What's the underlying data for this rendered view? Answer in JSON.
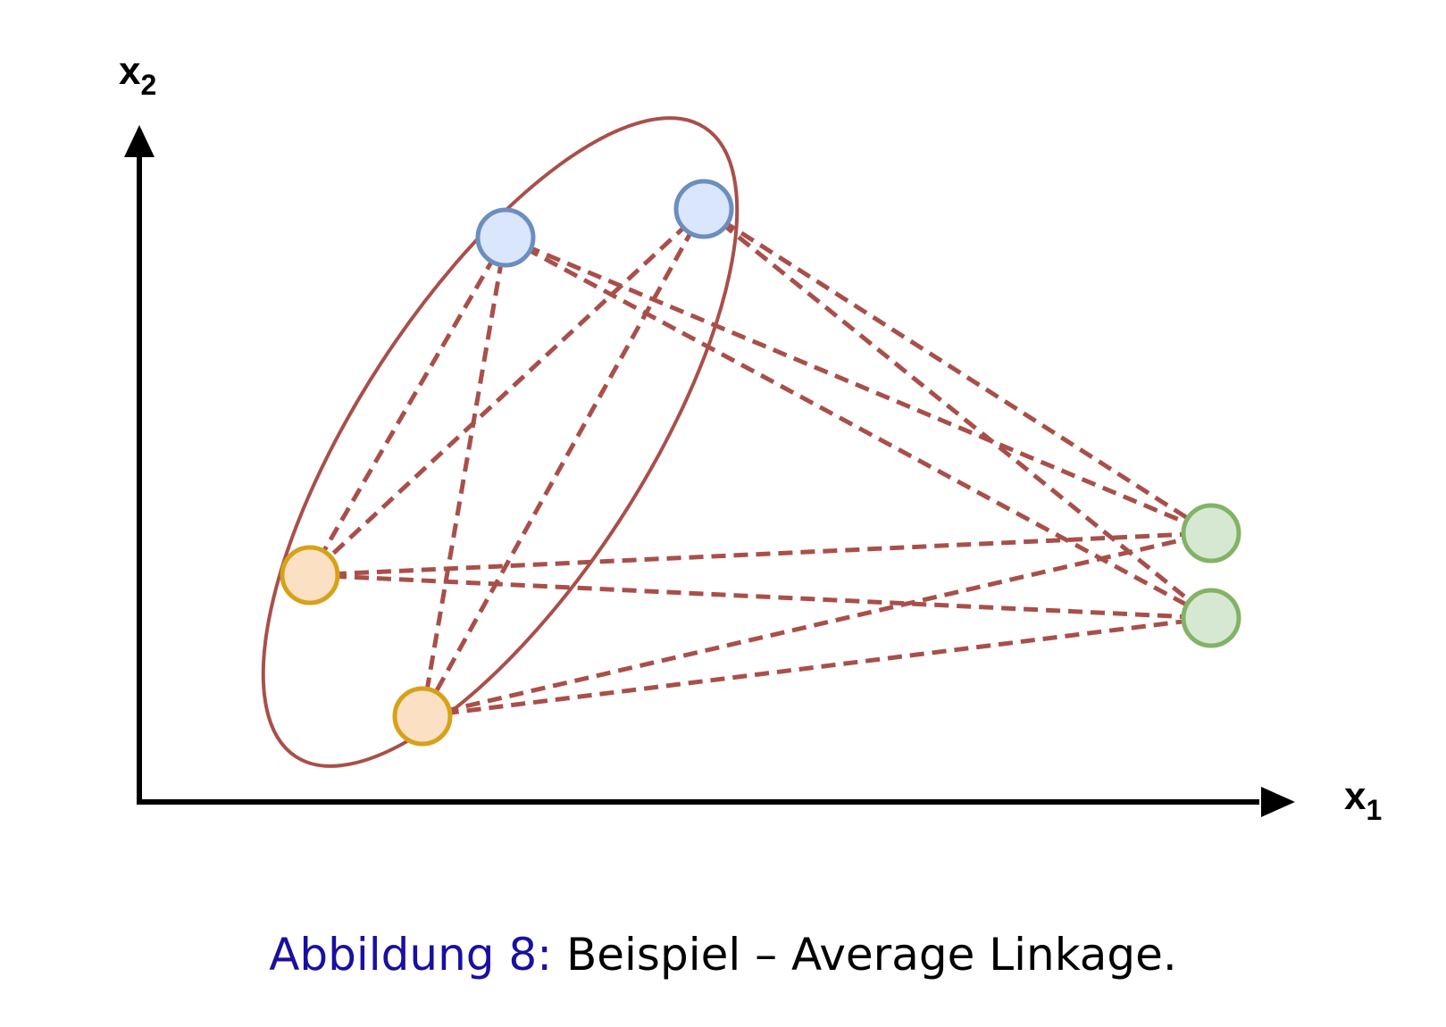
{
  "diagram": {
    "axes": {
      "x_label": "x",
      "x_subscript": "1",
      "y_label": "x",
      "y_subscript": "2"
    },
    "colors": {
      "axis": "#000000",
      "link": "#a94f4a",
      "cluster_ellipse": "#a94f4a",
      "blue_fill": "#dae6fb",
      "blue_stroke": "#6c8ebf",
      "orange_fill": "#fbe0c4",
      "orange_stroke": "#d6a21a",
      "green_fill": "#d6e8d2",
      "green_stroke": "#82b366"
    },
    "point_groups": [
      {
        "name": "blue",
        "count": 2,
        "cluster": "A"
      },
      {
        "name": "orange",
        "count": 2,
        "cluster": "A"
      },
      {
        "name": "green",
        "count": 2,
        "cluster": "B"
      }
    ],
    "links": "pairwise distances between all points, drawn as dashed lines"
  },
  "caption": {
    "figure_label": "Abbildung 8:",
    "text": "Beispiel – Average Linkage."
  }
}
